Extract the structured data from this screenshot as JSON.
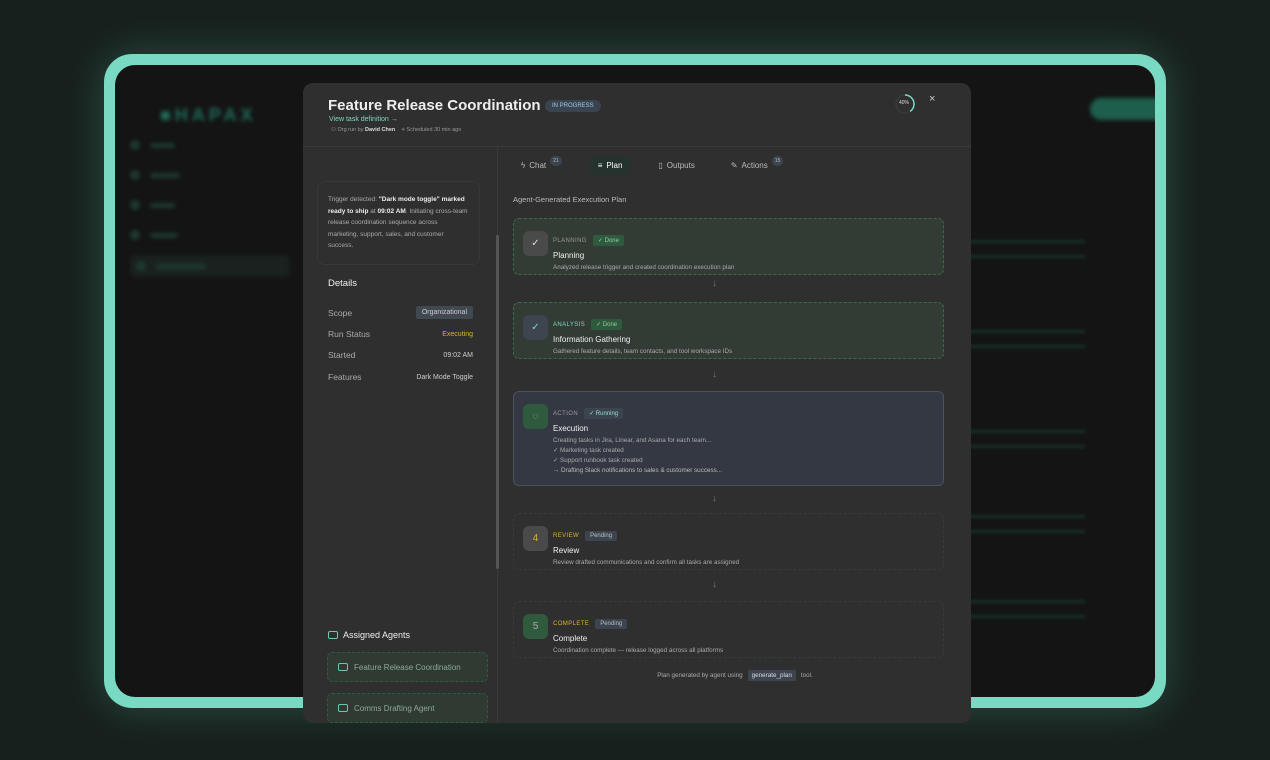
{
  "background": {
    "logo": "HAPAX"
  },
  "modal": {
    "title": "Feature Release Coordination",
    "status_badge": "IN PROGRESS",
    "view_definition": "View task definition →",
    "run_by_label": "Org run by",
    "run_by": "David Chen",
    "scheduled": "Scheduled 30 min ago",
    "progress_label": "40%",
    "progress": 0.4,
    "close": "×"
  },
  "left": {
    "trigger": {
      "pre": "Trigger detected: ",
      "b1": "\"Dark mode toggle\" marked ready to ship",
      "mid": " at ",
      "b2": "09:02 AM",
      "post": ". Initiating cross-team release coordination sequence across marketing, support, sales, and customer success."
    },
    "details_heading": "Details",
    "details": [
      {
        "label": "Scope",
        "value": "Organizational"
      },
      {
        "label": "Run Status",
        "value": "Executing"
      },
      {
        "label": "Started",
        "value": "09:02 AM"
      },
      {
        "label": "Features",
        "value": "Dark Mode Toggle"
      }
    ],
    "agents_heading": "Assigned Agents",
    "agents": [
      "Feature Release Coordination",
      "Comms Drafting Agent"
    ]
  },
  "tabs": [
    {
      "label": "Chat",
      "count": "21"
    },
    {
      "label": "Plan"
    },
    {
      "label": "Outputs"
    },
    {
      "label": "Actions",
      "count": "15"
    }
  ],
  "plan": {
    "heading": "Agent-Generated Exexcution Plan",
    "steps": [
      {
        "kind": "PLANNING",
        "status": "✓ Done",
        "name": "Planning",
        "desc": "Analyzed release trigger and created coordination execution plan",
        "icon": "✓"
      },
      {
        "kind": "ANALYSIS",
        "status": "✓ Done",
        "name": "Information Gathering",
        "desc": "Gathered feature details, team contacts, and tool workspace IDs",
        "icon": "✓"
      },
      {
        "kind": "ACTION",
        "status": "✓ Running",
        "name": "Execution",
        "desc": "Creating tasks in Jira, Linear, and Asana for each team...",
        "icon": "◌",
        "subtasks": [
          "✓ Marketing task created",
          "✓ Support runbook task created",
          "→ Drafting Slack notifications to sales & customer success..."
        ]
      },
      {
        "kind": "REVIEW",
        "status": "Pending",
        "name": "Review",
        "desc": "Review drafted communications and confirm all tasks are assigned",
        "icon": "4"
      },
      {
        "kind": "COMPLETE",
        "status": "Pending",
        "name": "Complete",
        "desc": "Coordination complete — release logged across all platforms",
        "icon": "5"
      }
    ],
    "footer_pre": "Plan generated by agent using",
    "footer_code": "generate_plan",
    "footer_post": "tool."
  },
  "colors": {
    "accent": "#7ad9c3",
    "executing": "#d9b52a",
    "done_bg": "#2f5a3d"
  }
}
